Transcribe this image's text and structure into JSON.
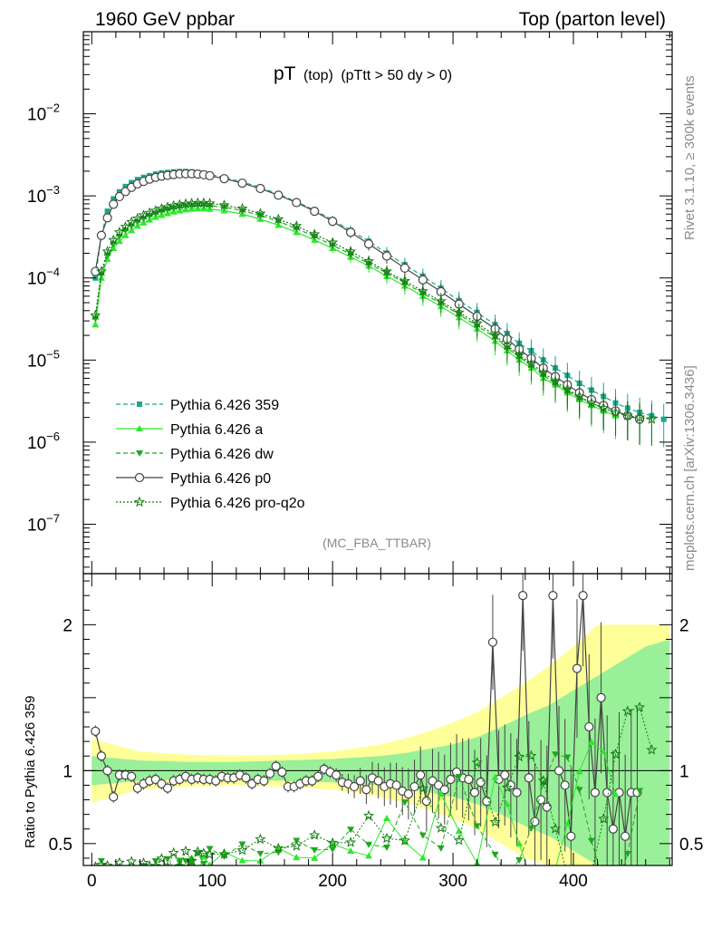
{
  "header": {
    "left": "1960 GeV ppbar",
    "right": "Top (parton level)"
  },
  "side_labels": {
    "rivet": "Rivet 3.1.10, ≥ 300k events",
    "mcplots": "mcplots.cern.ch [arXiv:1306.3436]"
  },
  "plot_title": {
    "main": "pT",
    "sub1": "(top)",
    "sub2": "(pTtt > 50 dy > 0)"
  },
  "analysis_label": "(MC_FBA_TTBAR)",
  "colors": {
    "p359": "#1aa88a",
    "a": "#2ee82e",
    "dw": "#1fa81f",
    "p0": "#444444",
    "proq2o": "#137a13",
    "band_yellow": "#ffff99",
    "band_green": "#99f099"
  },
  "legend": [
    {
      "label": "Pythia 6.426 359",
      "marker": "square",
      "style": "dashed",
      "color_key": "p359"
    },
    {
      "label": "Pythia 6.426 a",
      "marker": "triangle-up",
      "style": "solid",
      "color_key": "a"
    },
    {
      "label": "Pythia 6.426 dw",
      "marker": "triangle-down",
      "style": "dashed",
      "color_key": "dw"
    },
    {
      "label": "Pythia 6.426 p0",
      "marker": "circle-open",
      "style": "solid",
      "color_key": "p0"
    },
    {
      "label": "Pythia 6.426 pro-q2o",
      "marker": "star-open",
      "style": "dotted",
      "color_key": "proq2o"
    }
  ],
  "chart_data": {
    "type": "line",
    "main": {
      "yscale": "log",
      "ylim": [
        2.5e-08,
        0.1
      ],
      "yticks": [
        {
          "value": 1e-07,
          "base": "10",
          "exp": "−7"
        },
        {
          "value": 1e-06,
          "base": "10",
          "exp": "−6"
        },
        {
          "value": 1e-05,
          "base": "10",
          "exp": "−5"
        },
        {
          "value": 0.0001,
          "base": "10",
          "exp": "−4"
        },
        {
          "value": 0.001,
          "base": "10",
          "exp": "−3"
        },
        {
          "value": 0.01,
          "base": "10",
          "exp": "−2"
        }
      ],
      "series": [
        {
          "name": "Pythia 6.426 359",
          "color_key": "p359",
          "x": [
            3,
            8,
            13,
            18,
            23,
            28,
            33,
            38,
            43,
            48,
            53,
            58,
            63,
            68,
            73,
            78,
            83,
            88,
            93,
            98,
            110,
            125,
            140,
            155,
            170,
            185,
            200,
            215,
            230,
            245,
            260,
            275,
            290,
            305,
            320,
            335,
            345,
            355,
            365,
            375,
            385,
            395,
            405,
            415,
            425,
            435,
            445,
            455,
            465,
            475
          ],
          "y": [
            0.0001,
            0.00033,
            0.00065,
            0.00092,
            0.00112,
            0.0013,
            0.00145,
            0.00158,
            0.00168,
            0.00176,
            0.00184,
            0.0019,
            0.00193,
            0.00196,
            0.00198,
            0.00198,
            0.00196,
            0.00193,
            0.00189,
            0.00183,
            0.00168,
            0.00148,
            0.00127,
            0.00105,
            0.00085,
            0.00067,
            0.00051,
            0.00038,
            0.00028,
            0.0002,
            0.000145,
            0.000105,
            7.5e-05,
            5.3e-05,
            3.8e-05,
            2.7e-05,
            2.1e-05,
            1.6e-05,
            1.3e-05,
            1e-05,
            8e-06,
            6.5e-06,
            5.2e-06,
            4.3e-06,
            3.6e-06,
            3e-06,
            2.6e-06,
            2.3e-06,
            2.1e-06,
            1.9e-06
          ]
        },
        {
          "name": "Pythia 6.426 a",
          "color_key": "a",
          "x": [
            3,
            8,
            13,
            18,
            23,
            28,
            33,
            38,
            43,
            48,
            53,
            58,
            63,
            68,
            73,
            78,
            83,
            88,
            93,
            98,
            110,
            125,
            140,
            155,
            170,
            185,
            200,
            215,
            230,
            245,
            260,
            275,
            290,
            305,
            320,
            335,
            345,
            355,
            365,
            375,
            385,
            395,
            405,
            415,
            425,
            435
          ],
          "y": [
            2.7e-05,
            0.0001,
            0.00017,
            0.00023,
            0.00028,
            0.00033,
            0.00038,
            0.00043,
            0.00047,
            0.00051,
            0.00055,
            0.00058,
            0.00061,
            0.00064,
            0.00066,
            0.00068,
            0.00069,
            0.0007,
            0.0007,
            0.00069,
            0.00066,
            0.0006,
            0.00052,
            0.00044,
            0.00036,
            0.00029,
            0.00023,
            0.00018,
            0.00014,
            0.000105,
            8e-05,
            6e-05,
            4.5e-05,
            3.3e-05,
            2.4e-05,
            1.7e-05,
            1.3e-05,
            1e-05,
            8e-06,
            6e-06,
            5e-06,
            4e-06,
            3.3e-06,
            2.8e-06,
            2.4e-06,
            2.1e-06
          ]
        },
        {
          "name": "Pythia 6.426 dw",
          "color_key": "dw",
          "x": [
            3,
            8,
            13,
            18,
            23,
            28,
            33,
            38,
            43,
            48,
            53,
            58,
            63,
            68,
            73,
            78,
            83,
            88,
            93,
            98,
            110,
            125,
            140,
            155,
            170,
            185,
            200,
            215,
            230,
            245,
            260,
            275,
            290,
            305,
            320,
            335,
            345,
            355,
            365,
            375,
            385,
            395,
            405,
            415,
            425,
            435,
            445,
            455
          ],
          "y": [
            3.2e-05,
            0.00011,
            0.00019,
            0.00026,
            0.00032,
            0.00038,
            0.00043,
            0.00048,
            0.00053,
            0.00057,
            0.00061,
            0.00065,
            0.00068,
            0.00071,
            0.00073,
            0.00075,
            0.00076,
            0.00077,
            0.00077,
            0.00076,
            0.00073,
            0.00066,
            0.00058,
            0.00049,
            0.0004,
            0.00032,
            0.00025,
            0.000195,
            0.00015,
            0.000115,
            8.7e-05,
            6.5e-05,
            4.9e-05,
            3.6e-05,
            2.6e-05,
            1.9e-05,
            1.4e-05,
            1.1e-05,
            8.5e-06,
            6.5e-06,
            5.2e-06,
            4.2e-06,
            3.5e-06,
            3e-06,
            2.6e-06,
            2.3e-06,
            2.1e-06,
            1.9e-06
          ]
        },
        {
          "name": "Pythia 6.426 p0",
          "color_key": "p0",
          "x": [
            3,
            8,
            13,
            18,
            23,
            28,
            33,
            38,
            43,
            48,
            53,
            58,
            63,
            68,
            73,
            78,
            83,
            88,
            93,
            98,
            110,
            125,
            140,
            155,
            170,
            185,
            200,
            215,
            230,
            245,
            260,
            275,
            290,
            305,
            320,
            335,
            345,
            355,
            365,
            375,
            385,
            395,
            405,
            415,
            425,
            435,
            445,
            455
          ],
          "y": [
            0.00012,
            0.00033,
            0.00054,
            0.00079,
            0.00098,
            0.00113,
            0.00127,
            0.0014,
            0.0015,
            0.0016,
            0.00168,
            0.00174,
            0.00178,
            0.00182,
            0.00185,
            0.00186,
            0.00186,
            0.00184,
            0.00181,
            0.00176,
            0.00162,
            0.00143,
            0.00123,
            0.00102,
            0.00083,
            0.00065,
            0.00049,
            0.00036,
            0.00026,
            0.000185,
            0.000132,
            9.5e-05,
            6.8e-05,
            4.8e-05,
            3.4e-05,
            2.4e-05,
            1.8e-05,
            1.35e-05,
            1.05e-05,
            8e-06,
            6.3e-06,
            5e-06,
            4e-06,
            3.3e-06,
            2.8e-06,
            2.4e-06,
            2.1e-06,
            1.9e-06
          ]
        },
        {
          "name": "Pythia 6.426 pro-q2o",
          "color_key": "proq2o",
          "x": [
            3,
            8,
            13,
            18,
            23,
            28,
            33,
            38,
            43,
            48,
            53,
            58,
            63,
            68,
            73,
            78,
            83,
            88,
            93,
            98,
            110,
            125,
            140,
            155,
            170,
            185,
            200,
            215,
            230,
            245,
            260,
            275,
            290,
            305,
            320,
            335,
            345,
            355,
            365,
            375,
            385,
            395,
            405,
            415,
            425,
            435,
            445,
            455,
            465
          ],
          "y": [
            3.5e-05,
            0.00012,
            0.00021,
            0.00029,
            0.00036,
            0.00042,
            0.00048,
            0.00053,
            0.00058,
            0.00062,
            0.00066,
            0.0007,
            0.00073,
            0.00076,
            0.00078,
            0.0008,
            0.00081,
            0.00082,
            0.00082,
            0.00081,
            0.00077,
            0.0007,
            0.00061,
            0.00052,
            0.00043,
            0.00034,
            0.00027,
            0.00021,
            0.00016,
            0.00012,
            9.2e-05,
            6.9e-05,
            5.2e-05,
            3.8e-05,
            2.8e-05,
            2e-05,
            1.5e-05,
            1.15e-05,
            9e-06,
            7e-06,
            5.5e-06,
            4.4e-06,
            3.6e-06,
            3e-06,
            2.6e-06,
            2.3e-06,
            2.1e-06,
            2e-06,
            1.9e-06
          ]
        }
      ]
    },
    "ratio": {
      "ylabel": "Ratio to Pythia 6.426 359",
      "ylim": [
        0.35,
        2.35
      ],
      "yticks": [
        0.5,
        1,
        2
      ],
      "ytick_labels": [
        "0.5",
        "1",
        "2"
      ],
      "band_x": [
        0,
        40,
        80,
        120,
        160,
        200,
        240,
        260,
        280,
        300,
        320,
        340,
        360,
        380,
        400,
        420,
        440,
        460,
        480
      ],
      "band_yellow_half": [
        0.22,
        0.13,
        0.11,
        0.1,
        0.11,
        0.13,
        0.18,
        0.22,
        0.27,
        0.33,
        0.4,
        0.5,
        0.6,
        0.72,
        0.85,
        1.0,
        1.0,
        1.0,
        1.0
      ],
      "band_green_half": [
        0.1,
        0.07,
        0.06,
        0.06,
        0.07,
        0.08,
        0.1,
        0.12,
        0.15,
        0.18,
        0.23,
        0.3,
        0.38,
        0.45,
        0.55,
        0.65,
        0.75,
        0.85,
        0.9
      ],
      "series": [
        {
          "name": "Pythia 6.426 p0",
          "color_key": "p0",
          "x": [
            3,
            8,
            13,
            18,
            23,
            28,
            33,
            38,
            43,
            48,
            53,
            58,
            63,
            68,
            73,
            78,
            83,
            88,
            93,
            98,
            103,
            108,
            113,
            118,
            123,
            128,
            133,
            138,
            143,
            148,
            153,
            158,
            163,
            168,
            173,
            178,
            183,
            188,
            193,
            198,
            203,
            208,
            213,
            218,
            223,
            228,
            233,
            238,
            243,
            248,
            253,
            258,
            263,
            268,
            273,
            278,
            283,
            288,
            293,
            298,
            303,
            308,
            313,
            318,
            323,
            328,
            333,
            338,
            343,
            348,
            353,
            358,
            363,
            368,
            373,
            378,
            383,
            388,
            393,
            398,
            403,
            408,
            413,
            418,
            423,
            428,
            433,
            438,
            443,
            448,
            453
          ],
          "y": [
            1.27,
            1.1,
            1.0,
            0.82,
            0.97,
            0.97,
            0.96,
            0.88,
            0.91,
            0.93,
            0.94,
            0.91,
            0.88,
            0.93,
            0.94,
            0.96,
            0.94,
            0.95,
            0.94,
            0.94,
            0.93,
            0.96,
            0.95,
            0.95,
            0.97,
            0.95,
            0.91,
            0.94,
            0.93,
            0.98,
            1.03,
            0.99,
            0.89,
            0.89,
            0.91,
            0.93,
            0.93,
            0.96,
            1.01,
            0.99,
            0.97,
            0.92,
            0.91,
            0.89,
            0.93,
            0.87,
            0.95,
            0.93,
            0.89,
            0.91,
            0.9,
            0.86,
            0.84,
            0.89,
            0.97,
            0.79,
            0.93,
            0.9,
            0.87,
            0.94,
            0.99,
            0.95,
            0.94,
            0.85,
            0.92,
            0.79,
            1.88,
            0.94,
            0.97,
            0.9,
            0.85,
            2.2,
            0.95,
            0.65,
            0.8,
            0.75,
            2.2,
            1.0,
            0.9,
            0.55,
            1.7,
            2.2,
            1.3,
            0.85,
            1.5,
            0.85,
            0.6,
            0.85,
            0.55,
            0.85,
            0.85
          ]
        }
      ],
      "scatter_noise_note": "lower series scatter below 1"
    },
    "xaxis": {
      "xlim": [
        -7,
        482
      ],
      "ticks": [
        0,
        100,
        200,
        300,
        400
      ],
      "tick_labels": [
        "0",
        "100",
        "200",
        "300",
        "400"
      ]
    }
  }
}
